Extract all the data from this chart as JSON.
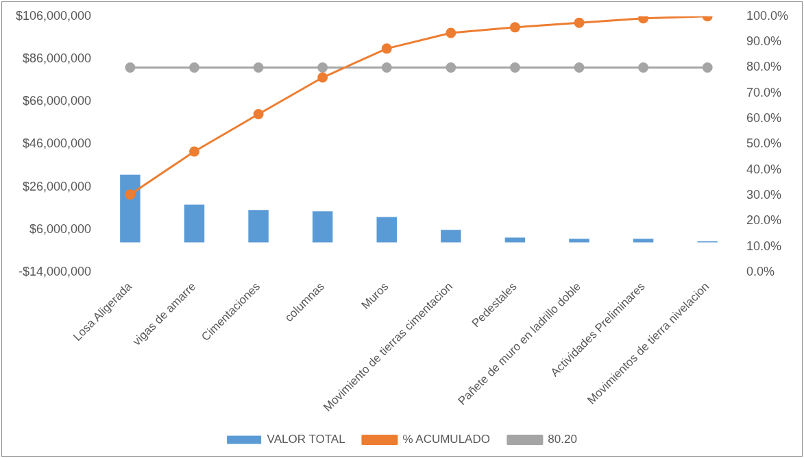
{
  "chart_data": {
    "type": "bar",
    "categories": [
      "Losa Aligerada",
      "vigas de amarre",
      "Cimentaciones",
      "columnas",
      "Muros",
      "Movimiento de tierras cimentacion",
      "Pedestales",
      "Pañete de muro en ladrillo doble",
      "Actividades Preliminares",
      "Movimientos de tierra nivelacion"
    ],
    "series": [
      {
        "name": "VALOR TOTAL",
        "color": "#5b9bd5",
        "values": [
          31800000,
          17700000,
          15200000,
          14600000,
          11900000,
          5900000,
          2300000,
          1700000,
          1700000,
          500000
        ]
      },
      {
        "name": "% ACUMULADO",
        "type": "line",
        "axis": "y2",
        "color": "#ed7d31",
        "values": [
          30.4,
          47.2,
          61.8,
          76.1,
          87.4,
          93.5,
          95.7,
          97.5,
          99.2,
          100
        ]
      },
      {
        "name": "80.20",
        "type": "line",
        "axis": "y2",
        "color": "#a5a5a5",
        "values": [
          80,
          80,
          80,
          80,
          80,
          80,
          80,
          80,
          80,
          80
        ]
      }
    ],
    "ylim": [
      -14000000,
      106000000
    ],
    "yticks": [
      {
        "value": -14000000,
        "label": "-$14,000,000"
      },
      {
        "value": 6000000,
        "label": "$6,000,000"
      },
      {
        "value": 26000000,
        "label": "$26,000,000"
      },
      {
        "value": 46000000,
        "label": "$46,000,000"
      },
      {
        "value": 66000000,
        "label": "$66,000,000"
      },
      {
        "value": 86000000,
        "label": "$86,000,000"
      },
      {
        "value": 106000000,
        "label": "$106,000,000"
      }
    ],
    "y2lim": [
      0,
      100
    ],
    "y2ticks": [
      {
        "value": 0,
        "label": "0.0%"
      },
      {
        "value": 10,
        "label": "10.0%"
      },
      {
        "value": 20,
        "label": "20.0%"
      },
      {
        "value": 30,
        "label": "30.0%"
      },
      {
        "value": 40,
        "label": "40.0%"
      },
      {
        "value": 50,
        "label": "50.0%"
      },
      {
        "value": 60,
        "label": "60.0%"
      },
      {
        "value": 70,
        "label": "70.0%"
      },
      {
        "value": 80,
        "label": "80.0%"
      },
      {
        "value": 90,
        "label": "90.0%"
      },
      {
        "value": 100,
        "label": "100.0%"
      }
    ],
    "grid": false,
    "legend": "bottom",
    "marker": "circle",
    "line_style": "solid"
  }
}
